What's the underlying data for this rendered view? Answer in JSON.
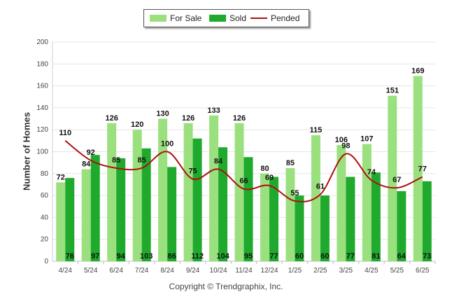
{
  "chart_data": {
    "type": "bar",
    "categories": [
      "4/24",
      "5/24",
      "6/24",
      "7/24",
      "8/24",
      "9/24",
      "10/24",
      "11/24",
      "12/24",
      "1/25",
      "2/25",
      "3/25",
      "4/25",
      "5/25",
      "6/25"
    ],
    "series": [
      {
        "name": "For Sale",
        "kind": "bar",
        "color": "#9be07e",
        "values": [
          72,
          84,
          126,
          120,
          130,
          126,
          133,
          126,
          80,
          85,
          115,
          106,
          107,
          151,
          169
        ]
      },
      {
        "name": "Sold",
        "kind": "bar",
        "color": "#1faa2e",
        "values": [
          76,
          97,
          94,
          103,
          86,
          112,
          104,
          95,
          77,
          60,
          60,
          77,
          81,
          64,
          73
        ]
      },
      {
        "name": "Pended",
        "kind": "line",
        "color": "#b01010",
        "values": [
          110,
          92,
          85,
          85,
          100,
          75,
          84,
          66,
          69,
          55,
          61,
          98,
          74,
          67,
          77
        ]
      }
    ],
    "ylabel": "Number of Homes",
    "ylim": [
      0,
      200
    ],
    "yticks": [
      0,
      20,
      40,
      60,
      80,
      100,
      120,
      140,
      160,
      180,
      200
    ],
    "grid": true,
    "legend": "top-center"
  },
  "footer": {
    "copyright": "Copyright © Trendgraphix, Inc."
  }
}
